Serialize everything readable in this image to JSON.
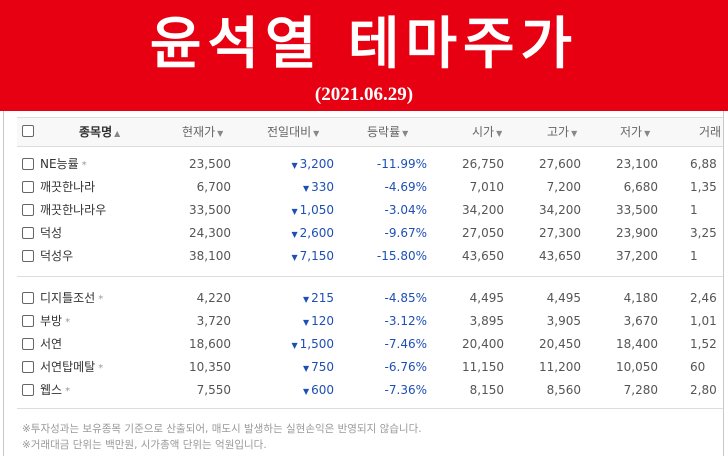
{
  "banner": {
    "title": "윤석열 테마주가",
    "date": "(2021.06.29)",
    "color": "#e60012"
  },
  "table": {
    "headers": [
      "종목명",
      "현재가",
      "전일대비",
      "등락률",
      "시가",
      "고가",
      "저가",
      "거래"
    ],
    "sort_indicators": {
      "name": "▲",
      "others": "▼"
    },
    "groups": [
      [
        {
          "name": "NE능률",
          "star": "*",
          "price": "23,500",
          "change": "3,200",
          "rate": "-11.99%",
          "open": "26,750",
          "high": "27,600",
          "low": "23,100",
          "volume": "6,88"
        },
        {
          "name": "깨끗한나라",
          "star": "",
          "price": "6,700",
          "change": "330",
          "rate": "-4.69%",
          "open": "7,010",
          "high": "7,200",
          "low": "6,680",
          "volume": "1,35"
        },
        {
          "name": "깨끗한나라우",
          "star": "",
          "price": "33,500",
          "change": "1,050",
          "rate": "-3.04%",
          "open": "34,200",
          "high": "34,200",
          "low": "33,500",
          "volume": "1"
        },
        {
          "name": "덕성",
          "star": "",
          "price": "24,300",
          "change": "2,600",
          "rate": "-9.67%",
          "open": "27,050",
          "high": "27,300",
          "low": "23,900",
          "volume": "3,25"
        },
        {
          "name": "덕성우",
          "star": "",
          "price": "38,100",
          "change": "7,150",
          "rate": "-15.80%",
          "open": "43,650",
          "high": "43,650",
          "low": "37,200",
          "volume": "1"
        }
      ],
      [
        {
          "name": "디지틀조선",
          "star": "*",
          "price": "4,220",
          "change": "215",
          "rate": "-4.85%",
          "open": "4,495",
          "high": "4,495",
          "low": "4,180",
          "volume": "2,46"
        },
        {
          "name": "부방",
          "star": "*",
          "price": "3,720",
          "change": "120",
          "rate": "-3.12%",
          "open": "3,895",
          "high": "3,905",
          "low": "3,670",
          "volume": "1,01"
        },
        {
          "name": "서연",
          "star": "",
          "price": "18,600",
          "change": "1,500",
          "rate": "-7.46%",
          "open": "20,400",
          "high": "20,450",
          "low": "18,400",
          "volume": "1,52"
        },
        {
          "name": "서연탑메탈",
          "star": "*",
          "price": "10,350",
          "change": "750",
          "rate": "-6.76%",
          "open": "11,150",
          "high": "11,200",
          "low": "10,050",
          "volume": "60"
        },
        {
          "name": "웹스",
          "star": "*",
          "price": "7,550",
          "change": "600",
          "rate": "-7.36%",
          "open": "8,150",
          "high": "8,560",
          "low": "7,280",
          "volume": "2,80"
        }
      ]
    ],
    "down_color": "#1e4fb5"
  },
  "notes": [
    "※투자성과는 보유종목 기준으로 산출되어, 매도시 발생하는 실현손익은 반영되지 않습니다.",
    "※거래대금 단위는 백만원, 시가총액 단위는 억원입니다."
  ]
}
